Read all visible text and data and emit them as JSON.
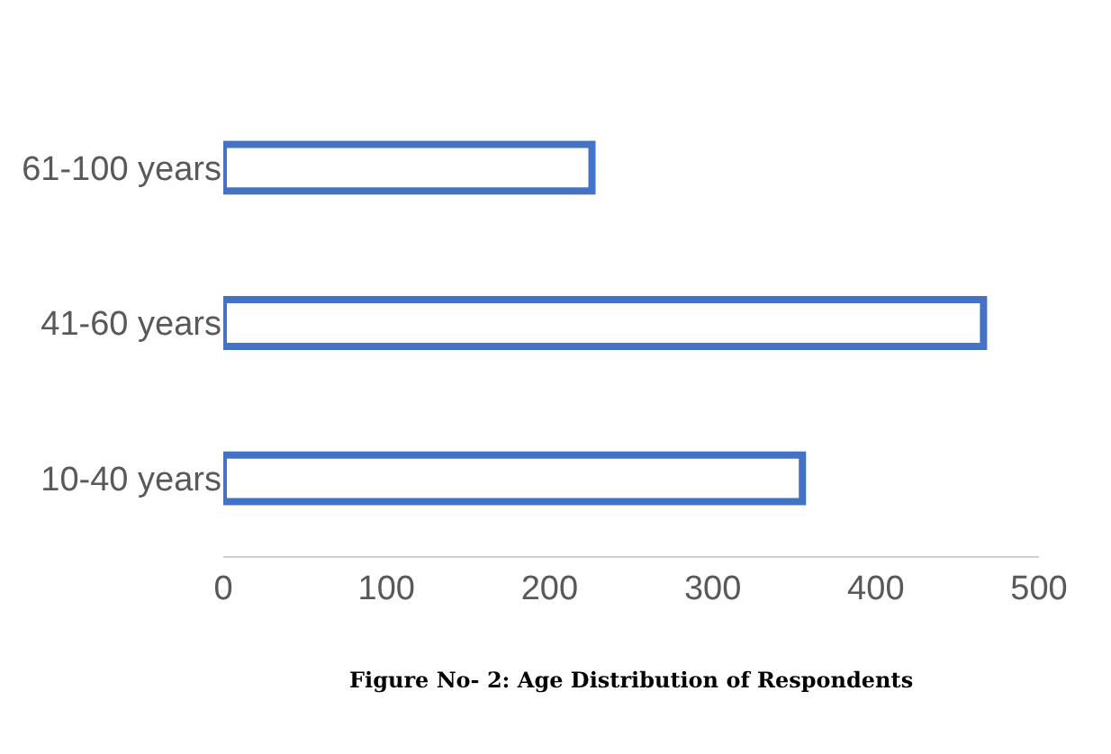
{
  "chart_data": {
    "type": "bar",
    "orientation": "horizontal",
    "categories": [
      "61-100 years",
      "41-60 years",
      "10-40 years"
    ],
    "values": [
      226,
      466,
      355
    ],
    "color": "#4472c4",
    "xlim": [
      0,
      500
    ],
    "xticks": [
      0,
      100,
      200,
      300,
      400,
      500
    ],
    "legend": false,
    "annotations": [
      "Figure No- 2: Age Distribution of Respondents"
    ]
  }
}
